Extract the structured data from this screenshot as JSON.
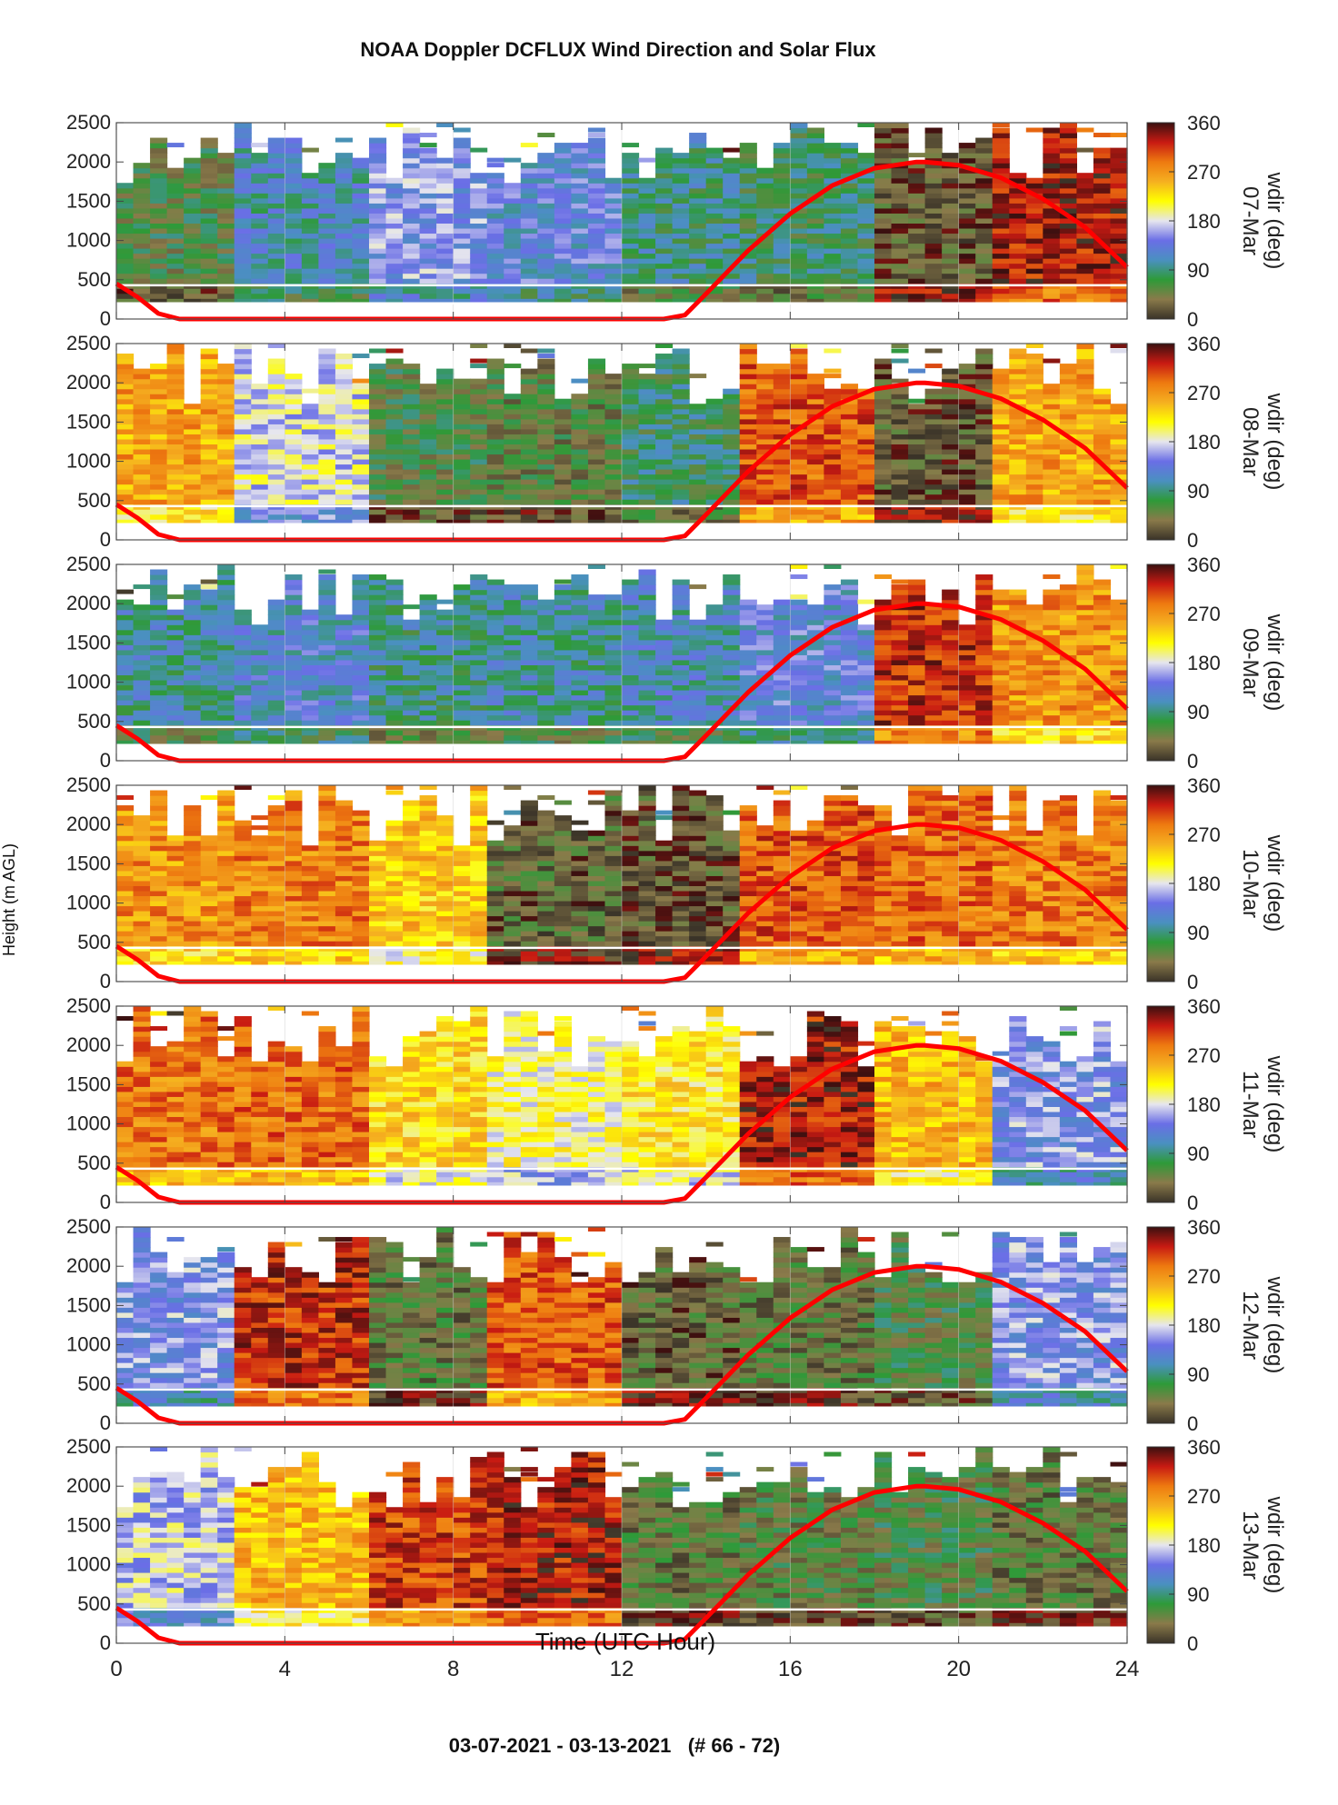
{
  "title": "NOAA Doppler DCFLUX Wind Direction and Solar Flux",
  "footer": "03-07-2021 - 03-13-2021   (# 66 - 72)",
  "ylabel_shared": "Height (m AGL)",
  "colors": {
    "solar_flux": "#ff0000",
    "reference_line": "#ffffff",
    "colormap": [
      "#3a3328",
      "#8a7a4a",
      "#2e9a38",
      "#4a90c0",
      "#6a6ee6",
      "#e6e6ee",
      "#ffff00",
      "#f5b020",
      "#ee7a10",
      "#c81a12",
      "#3a1010"
    ]
  },
  "chart_data": {
    "type": "heatmap",
    "xlabel": "Time (UTC Hour)",
    "xlim": [
      0,
      24
    ],
    "xticks": [
      0,
      4,
      8,
      12,
      16,
      20,
      24
    ],
    "ylim": [
      0,
      2500
    ],
    "yticks": [
      0,
      500,
      1000,
      1500,
      2000,
      2500
    ],
    "colorbar": {
      "label": "wdir (deg)",
      "range": [
        0,
        360
      ],
      "ticks": [
        0,
        90,
        180,
        270,
        360
      ]
    },
    "overlay_line": {
      "series_color": "red",
      "x": [
        0,
        0.5,
        1.0,
        1.5,
        13.0,
        13.5,
        14,
        15,
        16,
        17,
        18,
        19,
        19.2,
        20,
        21,
        22,
        23,
        24
      ],
      "y": [
        450,
        280,
        70,
        0,
        0,
        50,
        320,
        870,
        1340,
        1700,
        1920,
        2000,
        2000,
        1960,
        1800,
        1530,
        1170,
        660
      ]
    },
    "panels": [
      {
        "date": "07-Mar",
        "dominant_wdir_deg": [
          [
            0,
            3,
            60
          ],
          [
            3,
            6,
            110
          ],
          [
            6,
            9,
            150
          ],
          [
            9,
            12,
            130
          ],
          [
            12,
            15,
            90
          ],
          [
            15,
            18,
            80
          ],
          [
            18,
            21,
            20
          ],
          [
            21,
            24,
            330
          ]
        ]
      },
      {
        "date": "08-Mar",
        "dominant_wdir_deg": [
          [
            0,
            3,
            260
          ],
          [
            3,
            6,
            180
          ],
          [
            6,
            9,
            60
          ],
          [
            9,
            12,
            50
          ],
          [
            12,
            15,
            80
          ],
          [
            15,
            18,
            300
          ],
          [
            18,
            21,
            20
          ],
          [
            21,
            24,
            260
          ]
        ]
      },
      {
        "date": "09-Mar",
        "dominant_wdir_deg": [
          [
            0,
            3,
            100
          ],
          [
            3,
            6,
            120
          ],
          [
            6,
            9,
            90
          ],
          [
            9,
            12,
            100
          ],
          [
            12,
            15,
            110
          ],
          [
            15,
            18,
            130
          ],
          [
            18,
            21,
            320
          ],
          [
            21,
            24,
            270
          ]
        ]
      },
      {
        "date": "10-Mar",
        "dominant_wdir_deg": [
          [
            0,
            3,
            270
          ],
          [
            3,
            6,
            280
          ],
          [
            6,
            9,
            240
          ],
          [
            9,
            12,
            30
          ],
          [
            12,
            15,
            20
          ],
          [
            15,
            18,
            300
          ],
          [
            18,
            21,
            290
          ],
          [
            21,
            24,
            280
          ]
        ]
      },
      {
        "date": "11-Mar",
        "dominant_wdir_deg": [
          [
            0,
            3,
            285
          ],
          [
            3,
            6,
            290
          ],
          [
            6,
            9,
            230
          ],
          [
            9,
            12,
            200
          ],
          [
            12,
            15,
            220
          ],
          [
            15,
            18,
            330
          ],
          [
            18,
            21,
            250
          ],
          [
            21,
            24,
            150
          ]
        ]
      },
      {
        "date": "12-Mar",
        "dominant_wdir_deg": [
          [
            0,
            3,
            150
          ],
          [
            3,
            6,
            320
          ],
          [
            6,
            9,
            40
          ],
          [
            9,
            12,
            300
          ],
          [
            12,
            15,
            30
          ],
          [
            15,
            18,
            40
          ],
          [
            18,
            21,
            60
          ],
          [
            21,
            24,
            150
          ]
        ]
      },
      {
        "date": "13-Mar",
        "dominant_wdir_deg": [
          [
            0,
            3,
            170
          ],
          [
            3,
            6,
            250
          ],
          [
            6,
            9,
            310
          ],
          [
            9,
            12,
            330
          ],
          [
            12,
            15,
            40
          ],
          [
            15,
            18,
            50
          ],
          [
            18,
            21,
            60
          ],
          [
            21,
            24,
            40
          ]
        ]
      }
    ]
  }
}
